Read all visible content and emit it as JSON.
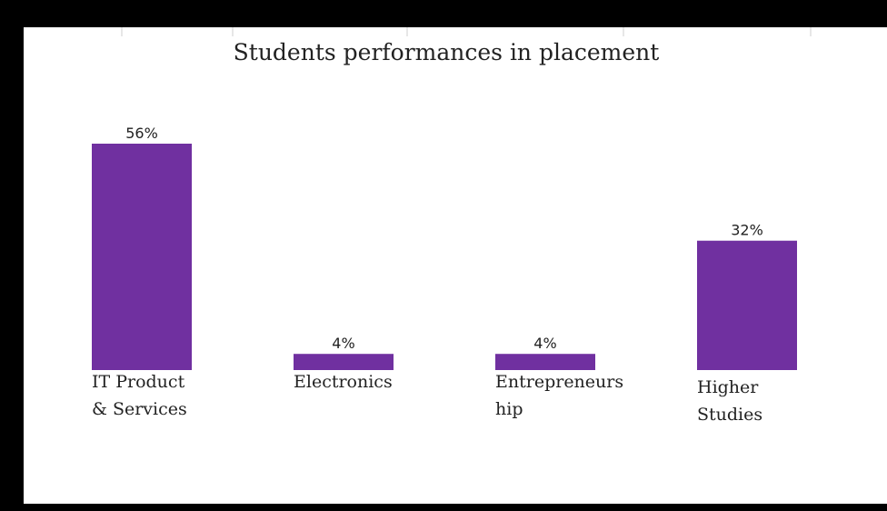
{
  "chart_data": {
    "type": "bar",
    "title": "Students performances in placement",
    "categories": [
      [
        "IT Product",
        "& Services"
      ],
      [
        "Electronics"
      ],
      [
        "Entrepreneurs",
        "hip"
      ],
      [
        "Higher",
        "Studies"
      ]
    ],
    "values": [
      56,
      4,
      4,
      32
    ],
    "data_labels": [
      "56%",
      "4%",
      "4%",
      "32%"
    ],
    "colors": {
      "bar": "#7030A0"
    },
    "ylim": [
      0,
      56
    ],
    "grid": false,
    "legend": "none"
  }
}
